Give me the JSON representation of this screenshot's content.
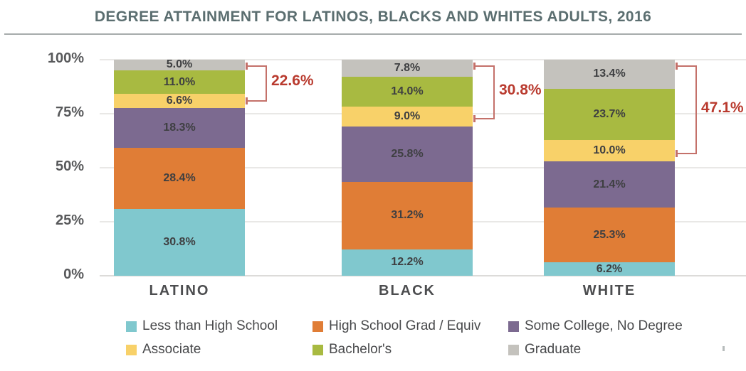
{
  "title": "DEGREE ATTAINMENT FOR LATINOS, BLACKS AND WHITES ADULTS, 2016",
  "colors": {
    "title_text": "#5b6e70",
    "title_rule": "#a6abab",
    "axis_text": "#58595b",
    "category_text": "#4c4d4f",
    "segment_text": "#3e3f41",
    "legend_text": "#48494b",
    "annotation_text": "#b93a2e",
    "bracket_line": "#c4716a",
    "gridline": "#e9e8e6",
    "baseline": "#dcdbd9",
    "stray_mark": "#b7bcbc"
  },
  "chart_data": {
    "type": "bar",
    "stacked": true,
    "title": "DEGREE ATTAINMENT FOR LATINOS, BLACKS AND WHITES ADULTS, 2016",
    "categories": [
      "LATINO",
      "BLACK",
      "WHITE"
    ],
    "series": [
      {
        "name": "Less than High School",
        "color": "#80c8ce",
        "values": [
          30.8,
          12.2,
          6.2
        ]
      },
      {
        "name": "High School Grad / Equiv",
        "color": "#e07d36",
        "values": [
          28.4,
          31.2,
          25.3
        ]
      },
      {
        "name": "Some College, No Degree",
        "color": "#7c6a90",
        "values": [
          18.3,
          25.8,
          21.4
        ]
      },
      {
        "name": "Associate",
        "color": "#f8d169",
        "values": [
          6.6,
          9.0,
          10.0
        ]
      },
      {
        "name": "Bachelor's",
        "color": "#a8ba41",
        "values": [
          11.0,
          14.0,
          23.7
        ]
      },
      {
        "name": "Graduate",
        "color": "#c4c2bd",
        "values": [
          5.0,
          7.8,
          13.4
        ]
      }
    ],
    "value_label_format": "{value}%",
    "y_ticks": [
      0,
      25,
      50,
      75,
      100
    ],
    "ylim": [
      0,
      100
    ],
    "grid": true,
    "legend_position": "bottom",
    "annotations": [
      {
        "category": "LATINO",
        "label": "22.6%",
        "spans_series": [
          "Associate",
          "Bachelor's",
          "Graduate"
        ]
      },
      {
        "category": "BLACK",
        "label": "30.8%",
        "spans_series": [
          "Associate",
          "Bachelor's",
          "Graduate"
        ]
      },
      {
        "category": "WHITE",
        "label": "47.1%",
        "spans_series": [
          "Associate",
          "Bachelor's",
          "Graduate"
        ]
      }
    ]
  }
}
